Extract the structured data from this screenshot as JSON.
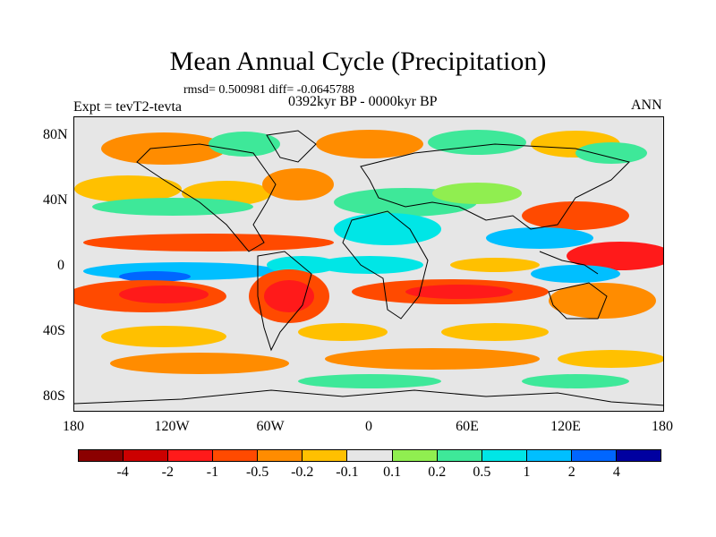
{
  "title": "Mean Annual Cycle (Precipitation)",
  "stats": "rmsd= 0.500981 diff= -0.0645788",
  "experiment": "Expt = tevT2-tevta",
  "period": "0392kyr BP - 0000kyr BP",
  "season": "ANN",
  "y_ticks": [
    "80N",
    "40N",
    "0",
    "40S",
    "80S"
  ],
  "x_ticks": [
    "180",
    "120W",
    "60W",
    "0",
    "60E",
    "120E",
    "180"
  ],
  "colorbar": {
    "colors": [
      "#8b0000",
      "#cc0000",
      "#ff1a1a",
      "#ff4a00",
      "#ff8c00",
      "#ffc000",
      "#e6e6e6",
      "#90ee50",
      "#3ee899",
      "#00e6e6",
      "#00bfff",
      "#0066ff",
      "#0000a0"
    ],
    "labels": [
      "-4",
      "-2",
      "-1",
      "-0.5",
      "-0.2",
      "-0.1",
      "0.1",
      "0.2",
      "0.5",
      "1",
      "2",
      "4"
    ]
  },
  "colors": {
    "background": "#ffffff",
    "neutral": "#e6e6e6",
    "coastline": "#000000"
  }
}
